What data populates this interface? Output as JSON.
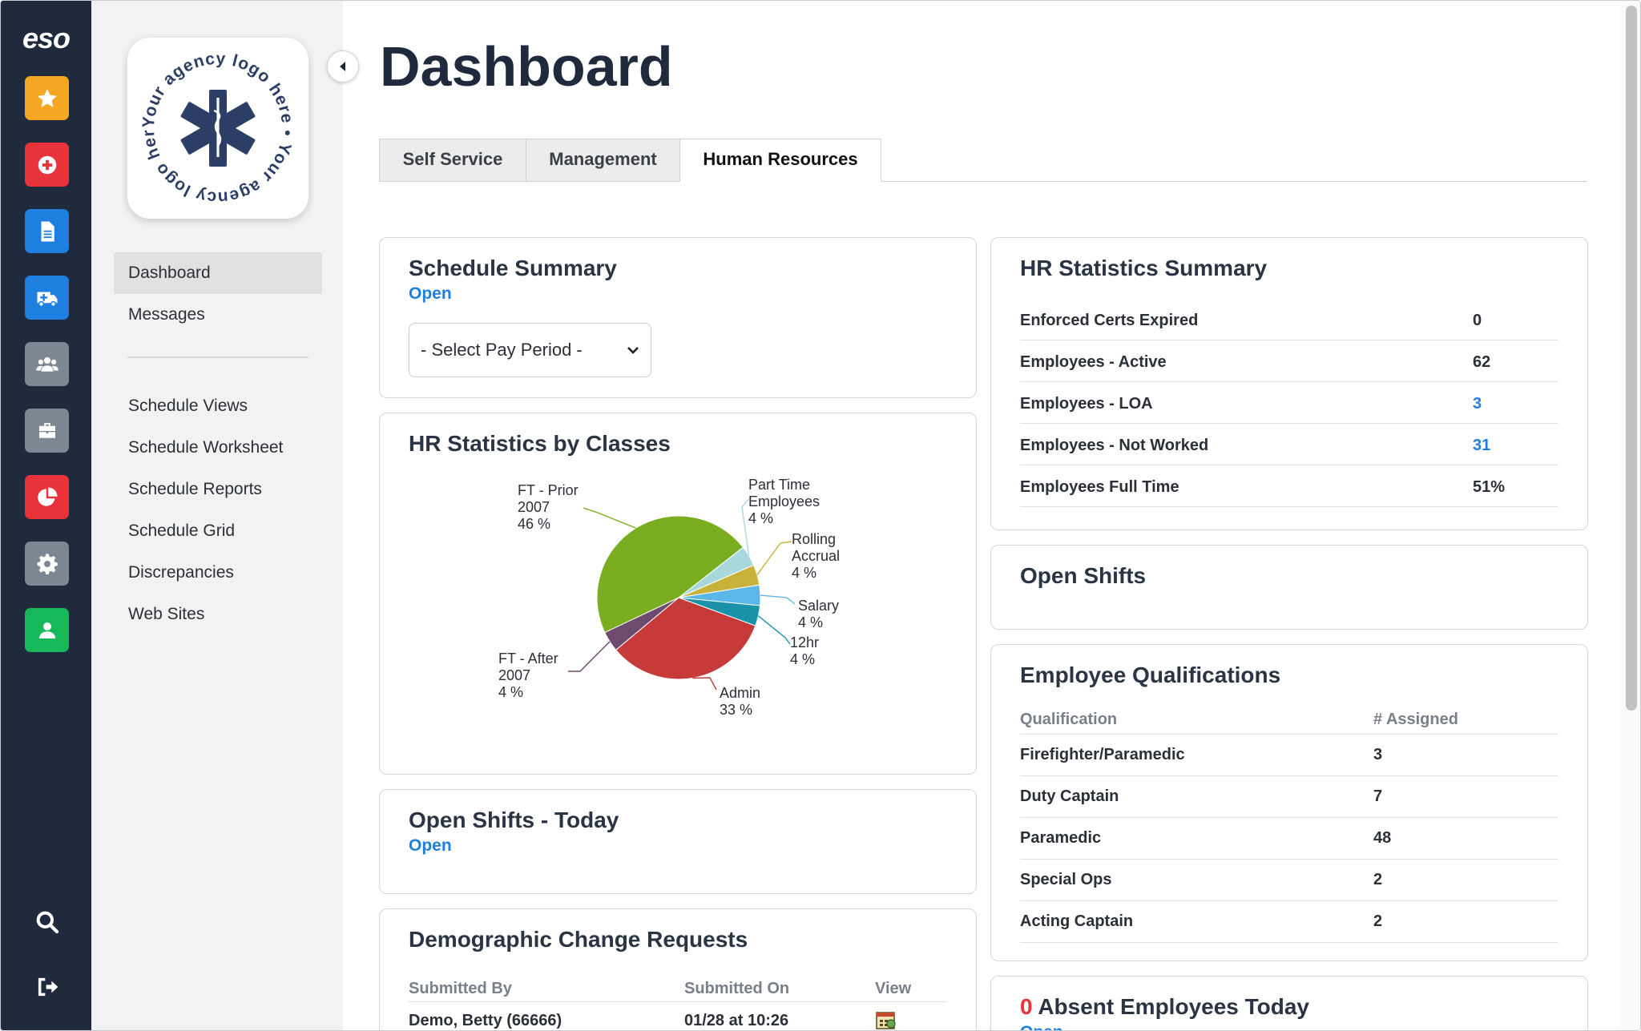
{
  "rail": {
    "logo": "eso",
    "buttons": [
      {
        "name": "favorites-star-icon",
        "color": "#f5a623"
      },
      {
        "name": "medical-cross-icon",
        "color": "#e8333b"
      },
      {
        "name": "document-icon",
        "color": "#1e7fe0"
      },
      {
        "name": "ambulance-icon",
        "color": "#1e7fe0"
      },
      {
        "name": "people-group-icon",
        "color": "#7d8794"
      },
      {
        "name": "briefcase-icon",
        "color": "#7d8794"
      },
      {
        "name": "pie-chart-icon",
        "color": "#e8333b"
      },
      {
        "name": "gear-icon",
        "color": "#7d8794"
      },
      {
        "name": "user-icon",
        "color": "#17b85a"
      }
    ]
  },
  "sidebar": {
    "logo_text": "Your agency logo here",
    "primary": [
      {
        "label": "Dashboard",
        "active": true
      },
      {
        "label": "Messages",
        "active": false
      }
    ],
    "secondary": [
      {
        "label": "Schedule Views"
      },
      {
        "label": "Schedule Worksheet"
      },
      {
        "label": "Schedule Reports"
      },
      {
        "label": "Schedule Grid"
      },
      {
        "label": "Discrepancies"
      },
      {
        "label": "Web Sites"
      }
    ]
  },
  "header": {
    "title": "Dashboard",
    "tabs": [
      {
        "label": "Self Service",
        "active": false
      },
      {
        "label": "Management",
        "active": false
      },
      {
        "label": "Human Resources",
        "active": true
      }
    ]
  },
  "schedule_summary": {
    "title": "Schedule Summary",
    "link": "Open",
    "select_value": "- Select Pay Period -"
  },
  "hr_classes": {
    "title": "HR Statistics by Classes",
    "chart_data": {
      "type": "pie",
      "title": "HR Statistics by Classes",
      "slices": [
        {
          "label": [
            "Part Time",
            "Employees",
            "4 %"
          ],
          "value": 4,
          "color": "#a8d8dc"
        },
        {
          "label": [
            "Rolling",
            "Accrual",
            "4 %"
          ],
          "value": 4,
          "color": "#c9b23a"
        },
        {
          "label": [
            "Salary",
            "4 %"
          ],
          "value": 4,
          "color": "#5cb7e8"
        },
        {
          "label": [
            "12hr",
            "4 %"
          ],
          "value": 4,
          "color": "#1a93a8"
        },
        {
          "label": [
            "Admin",
            "33 %"
          ],
          "value": 33,
          "color": "#c73a3a"
        },
        {
          "label": [
            "FT - After",
            "2007",
            "4 %"
          ],
          "value": 4,
          "color": "#6e4a6e"
        },
        {
          "label": [
            "FT - Prior",
            "2007",
            "46 %"
          ],
          "value": 46,
          "color": "#7aad1f"
        }
      ]
    }
  },
  "open_shifts_today": {
    "title": "Open Shifts - Today",
    "link": "Open"
  },
  "demographic": {
    "title": "Demographic Change Requests",
    "columns": [
      "Submitted By",
      "Submitted On",
      "View"
    ],
    "rows": [
      {
        "submitted_by": "Demo, Betty (66666)",
        "submitted_on": "01/28 at 10:26"
      }
    ]
  },
  "hr_summary": {
    "title": "HR Statistics Summary",
    "rows": [
      {
        "label": "Enforced Certs Expired",
        "value": "0",
        "link": false
      },
      {
        "label": "Employees - Active",
        "value": "62",
        "link": false
      },
      {
        "label": "Employees - LOA",
        "value": "3",
        "link": true
      },
      {
        "label": "Employees - Not Worked",
        "value": "31",
        "link": true
      },
      {
        "label": "Employees Full Time",
        "value": "51%",
        "link": false
      }
    ]
  },
  "open_shifts": {
    "title": "Open Shifts"
  },
  "qualifications": {
    "title": "Employee Qualifications",
    "columns": [
      "Qualification",
      "# Assigned"
    ],
    "rows": [
      {
        "name": "Firefighter/Paramedic",
        "count": "3"
      },
      {
        "name": "Duty Captain",
        "count": "7"
      },
      {
        "name": "Paramedic",
        "count": "48"
      },
      {
        "name": "Special Ops",
        "count": "2"
      },
      {
        "name": "Acting Captain",
        "count": "2"
      }
    ]
  },
  "absent": {
    "count": "0",
    "title": "Absent Employees Today",
    "link": "Open"
  },
  "colors": {
    "rail_bg": "#1f2b3d",
    "link": "#1e7fe0",
    "alert": "#e8333b"
  }
}
